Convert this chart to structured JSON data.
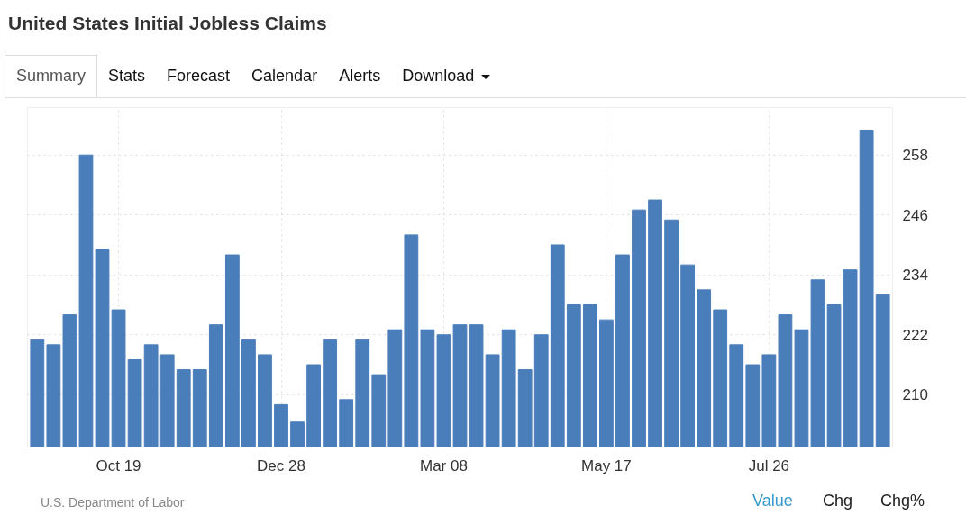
{
  "chart_data": {
    "type": "bar",
    "title": "United States Initial Jobless Claims",
    "categories": [
      null,
      null,
      null,
      null,
      null,
      "Oct 19",
      null,
      null,
      null,
      null,
      null,
      null,
      null,
      null,
      null,
      "Dec 28",
      null,
      null,
      null,
      null,
      null,
      null,
      null,
      null,
      null,
      "Mar 08",
      null,
      null,
      null,
      null,
      null,
      null,
      null,
      null,
      null,
      "May 17",
      null,
      null,
      null,
      null,
      null,
      null,
      null,
      null,
      null,
      "Jul 26",
      null,
      null,
      null,
      null,
      null,
      null,
      null
    ],
    "values": [
      221,
      220,
      226,
      258,
      239,
      227,
      217,
      220,
      218,
      215,
      215,
      224,
      238,
      221,
      218,
      208,
      204.5,
      216,
      221,
      209,
      221,
      214,
      223,
      242,
      223,
      222,
      224,
      224,
      218,
      223,
      215,
      222,
      240,
      228,
      228,
      225,
      238,
      247,
      249,
      245,
      236,
      231,
      227,
      220,
      216,
      218,
      226,
      223,
      233,
      228,
      235,
      263,
      230
    ],
    "color": "#4a7ebb",
    "ylim": [
      199.5,
      267.5
    ],
    "yticks": [
      210,
      222,
      234,
      246,
      258
    ],
    "grid": true,
    "annotations": [
      "Summary",
      "Stats",
      "Forecast",
      "Calendar",
      "Alerts",
      "Download",
      "U.S. Department of Labor",
      "Value",
      "Chg",
      "Chg%"
    ]
  }
}
